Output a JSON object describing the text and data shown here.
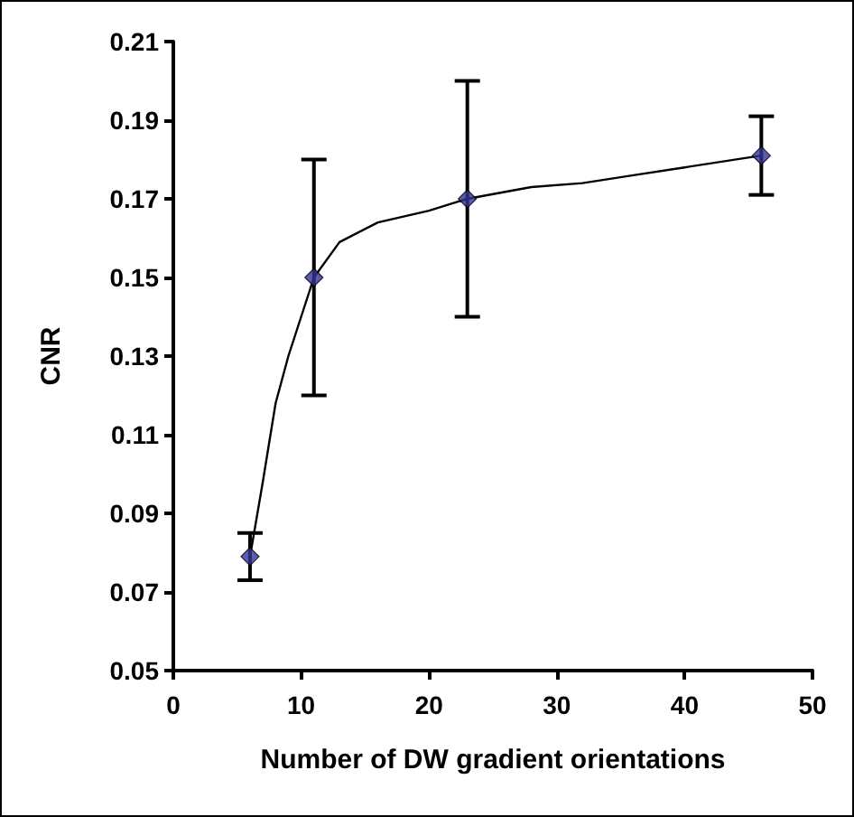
{
  "chart_data": {
    "type": "scatter",
    "xlabel": "Number of DW gradient orientations",
    "ylabel": "CNR",
    "xlim": [
      0,
      50
    ],
    "xticks": [
      0,
      10,
      20,
      30,
      40,
      50
    ],
    "ylim": [
      0.05,
      0.21
    ],
    "yticks": [
      0.05,
      0.07,
      0.09,
      0.11,
      0.13,
      0.15,
      0.17,
      0.19,
      0.21
    ],
    "grid": false,
    "marker": "diamond",
    "series": [
      {
        "type": "line",
        "color": "#000000",
        "line_style": "solid",
        "marker": "none",
        "x": [
          6,
          7,
          8,
          9,
          10,
          11,
          13,
          16,
          20,
          23,
          28,
          32,
          36,
          40,
          46
        ],
        "values": [
          0.079,
          0.098,
          0.118,
          0.13,
          0.14,
          0.15,
          0.159,
          0.164,
          0.167,
          0.17,
          0.173,
          0.174,
          0.176,
          0.178,
          0.181
        ]
      },
      {
        "color": "#333399",
        "x": [
          6,
          11,
          23,
          46
        ],
        "values": [
          0.079,
          0.15,
          0.17,
          0.181
        ],
        "errors": [
          [
            0.073,
            0.085
          ],
          [
            0.12,
            0.18
          ],
          [
            0.14,
            0.2
          ],
          [
            0.171,
            0.191
          ]
        ]
      }
    ]
  }
}
